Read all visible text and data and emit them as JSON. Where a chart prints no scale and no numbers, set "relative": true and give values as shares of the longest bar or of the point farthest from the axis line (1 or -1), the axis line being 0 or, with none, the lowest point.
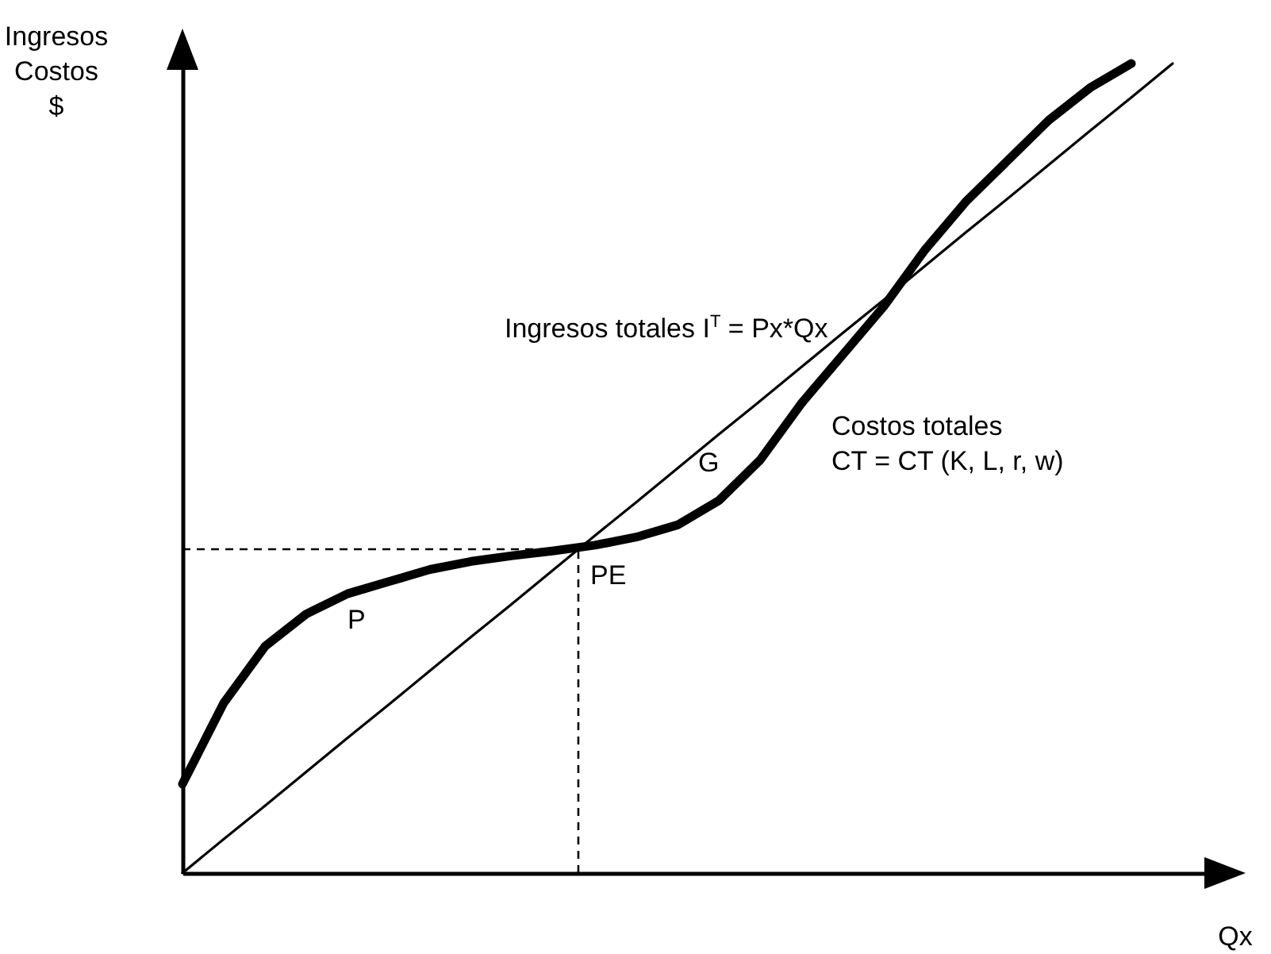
{
  "chart_data": {
    "type": "line",
    "relative": true,
    "xlabel": "Qx",
    "ylabel": "Ingresos\nCostos\n$",
    "categories": [
      null,
      null,
      null,
      null,
      null,
      null,
      null,
      null,
      null,
      null,
      null,
      null,
      null,
      null,
      null,
      null,
      null,
      null,
      null,
      null,
      null,
      null,
      null,
      null,
      null
    ],
    "series": [
      {
        "name": "Ingresos totales I$^{T}$ = Px*Qx",
        "color": "#000000",
        "values": [
          0,
          0.042,
          0.083,
          0.125,
          0.167,
          0.208,
          0.25,
          0.292,
          0.333,
          0.375,
          0.417,
          0.458,
          0.5,
          0.542,
          0.583,
          0.625,
          0.667,
          0.708,
          0.75,
          0.792,
          0.833,
          0.875,
          0.917,
          0.958,
          1
        ]
      },
      {
        "name": "Costos totales\nCT = CT (K, L, r, w)",
        "color": "#000000",
        "values": [
          0.11,
          0.21,
          0.28,
          0.32,
          0.345,
          0.36,
          0.375,
          0.385,
          0.392,
          0.398,
          0.405,
          0.415,
          0.43,
          0.46,
          0.51,
          0.58,
          0.64,
          0.7,
          0.77,
          0.83,
          0.88,
          0.93,
          0.97,
          1,
          null
        ]
      }
    ],
    "ref_lines": [
      {
        "axis": "y",
        "value": 0.4,
        "line_style": "dashed"
      }
    ],
    "annotations": [
      "G",
      "P",
      "PE"
    ],
    "marker": "none",
    "line_style": "solid"
  }
}
